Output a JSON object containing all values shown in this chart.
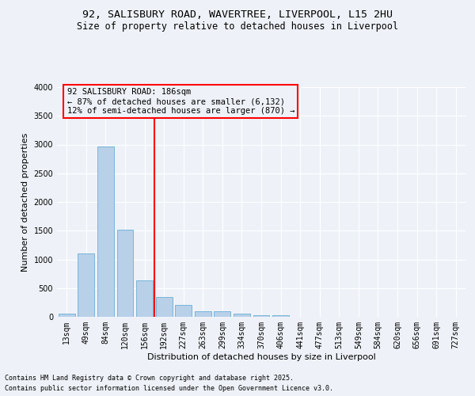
{
  "title_line1": "92, SALISBURY ROAD, WAVERTREE, LIVERPOOL, L15 2HU",
  "title_line2": "Size of property relative to detached houses in Liverpool",
  "xlabel": "Distribution of detached houses by size in Liverpool",
  "ylabel": "Number of detached properties",
  "bar_labels": [
    "13sqm",
    "49sqm",
    "84sqm",
    "120sqm",
    "156sqm",
    "192sqm",
    "227sqm",
    "263sqm",
    "299sqm",
    "334sqm",
    "370sqm",
    "406sqm",
    "441sqm",
    "477sqm",
    "513sqm",
    "549sqm",
    "584sqm",
    "620sqm",
    "656sqm",
    "691sqm",
    "727sqm"
  ],
  "bar_values": [
    55,
    1110,
    2960,
    1520,
    640,
    350,
    205,
    95,
    95,
    55,
    30,
    30,
    5,
    5,
    5,
    5,
    0,
    0,
    0,
    0,
    0
  ],
  "bar_color": "#b8d0e8",
  "bar_edge_color": "#6baed6",
  "vline_index": 5,
  "vline_color": "red",
  "annotation_title": "92 SALISBURY ROAD: 186sqm",
  "annotation_line1": "← 87% of detached houses are smaller (6,132)",
  "annotation_line2": "12% of semi-detached houses are larger (870) →",
  "annotation_box_color": "red",
  "ylim": [
    0,
    4000
  ],
  "yticks": [
    0,
    500,
    1000,
    1500,
    2000,
    2500,
    3000,
    3500,
    4000
  ],
  "footnote_line1": "Contains HM Land Registry data © Crown copyright and database right 2025.",
  "footnote_line2": "Contains public sector information licensed under the Open Government Licence v3.0.",
  "background_color": "#eef2f8",
  "grid_color": "#ffffff",
  "title_fontsize": 9.5,
  "subtitle_fontsize": 8.5,
  "axis_label_fontsize": 8,
  "tick_fontsize": 7,
  "annotation_fontsize": 7.5,
  "footnote_fontsize": 6
}
